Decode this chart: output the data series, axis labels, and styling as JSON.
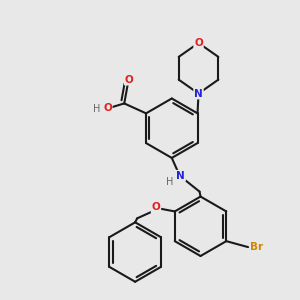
{
  "bg_color": "#e8e8e8",
  "bond_color": "#1a1a1a",
  "N_color": "#2020dd",
  "O_color": "#dd2020",
  "Br_color": "#cc8800",
  "H_color": "#666666",
  "line_width": 1.5,
  "dbo": 0.033,
  "xlim": [
    0,
    3.0
  ],
  "ylim": [
    0,
    3.0
  ],
  "r_hex": 0.3
}
